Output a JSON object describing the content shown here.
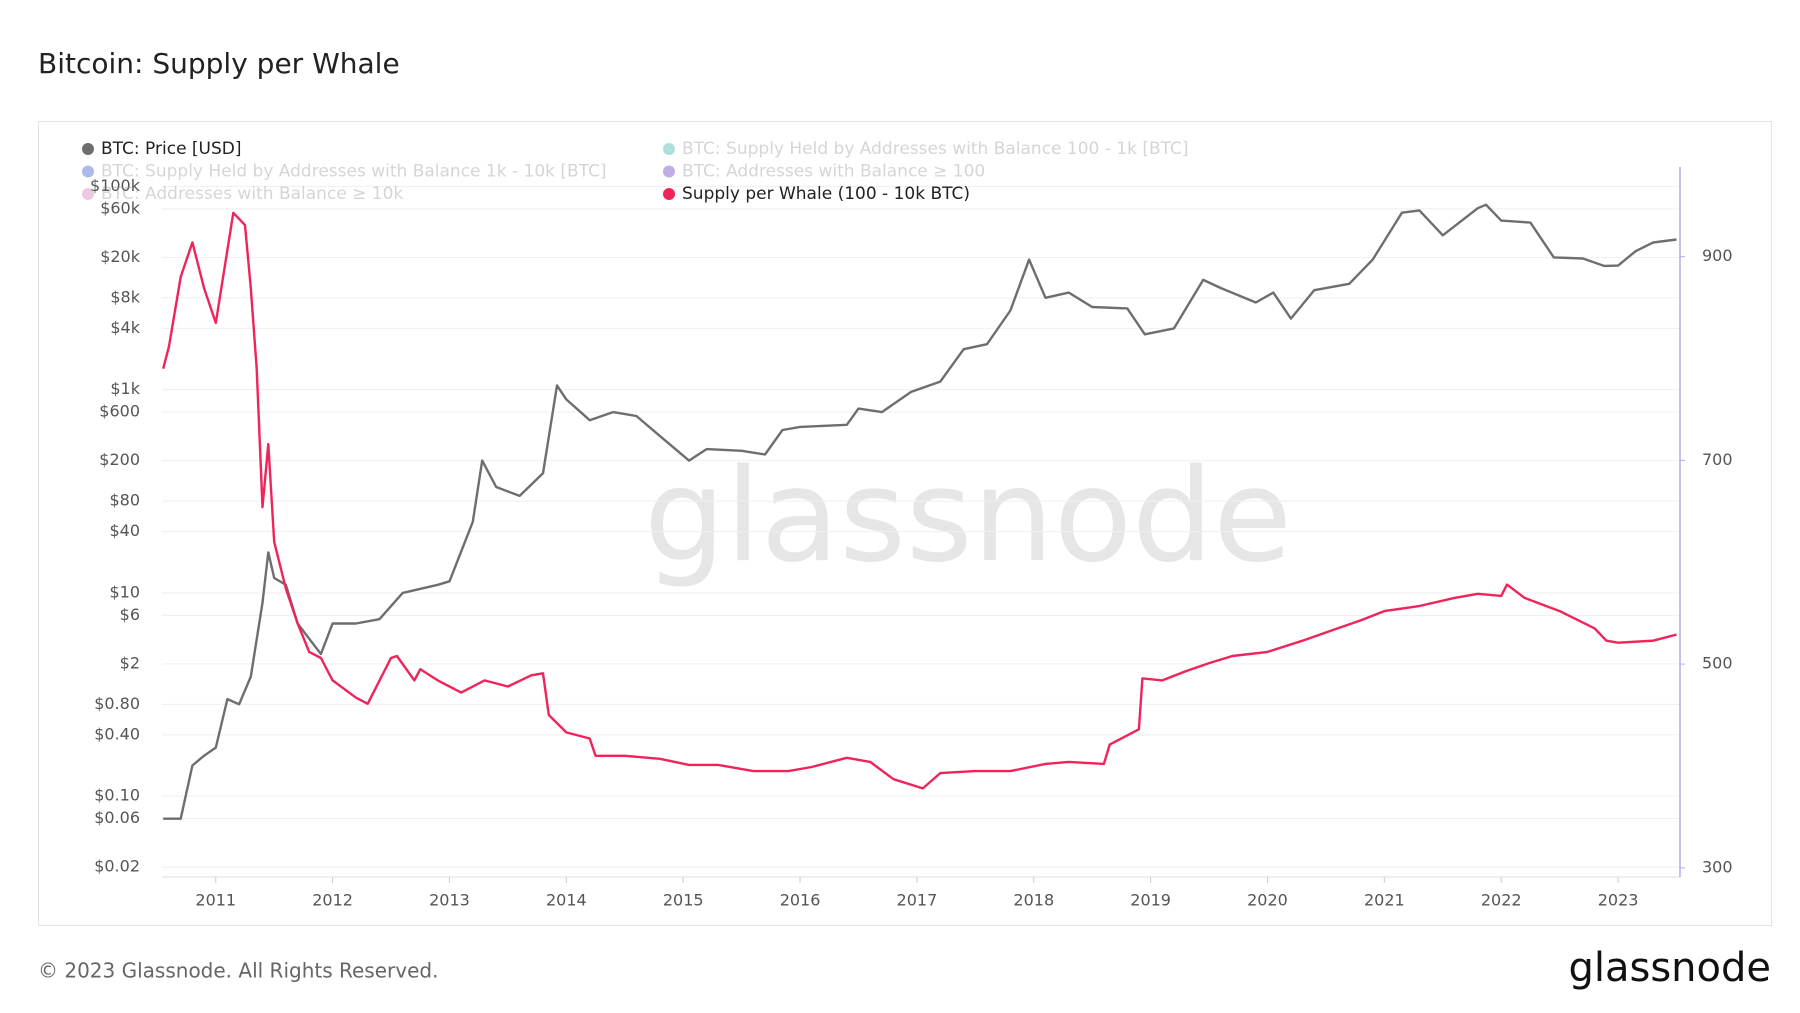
{
  "title": "Bitcoin: Supply per Whale",
  "footer": "© 2023 Glassnode. All Rights Reserved.",
  "logo": "glassnode",
  "watermark": "glassnode",
  "chart_data": {
    "type": "line",
    "log_scale": true,
    "grid": true,
    "xlim": [
      2010.54,
      2023.53
    ],
    "xticks": [
      2011,
      2012,
      2013,
      2014,
      2015,
      2016,
      2017,
      2018,
      2019,
      2020,
      2021,
      2022,
      2023
    ],
    "ylim": [
      0.016,
      155000
    ],
    "yticks": [
      {
        "value": 100000,
        "label": "$100k"
      },
      {
        "value": 60000,
        "label": "$60k"
      },
      {
        "value": 20000,
        "label": "$20k"
      },
      {
        "value": 8000,
        "label": "$8k"
      },
      {
        "value": 4000,
        "label": "$4k"
      },
      {
        "value": 1000,
        "label": "$1k"
      },
      {
        "value": 600,
        "label": "$600"
      },
      {
        "value": 200,
        "label": "$200"
      },
      {
        "value": 80,
        "label": "$80"
      },
      {
        "value": 40,
        "label": "$40"
      },
      {
        "value": 10,
        "label": "$10"
      },
      {
        "value": 6,
        "label": "$6"
      },
      {
        "value": 2,
        "label": "$2"
      },
      {
        "value": 0.8,
        "label": "$0.80"
      },
      {
        "value": 0.4,
        "label": "$0.40"
      },
      {
        "value": 0.1,
        "label": "$0.10"
      },
      {
        "value": 0.06,
        "label": "$0.06"
      },
      {
        "value": 0.02,
        "label": "$0.02"
      }
    ],
    "y2lim": [
      291,
      988
    ],
    "y2ticks": [
      300,
      500,
      700,
      900
    ],
    "series": [
      {
        "name": "BTC: Price [USD]",
        "color": "#6e6e6e",
        "axis": "y",
        "visible": true,
        "x": [
          2010.55,
          2010.7,
          2010.8,
          2010.9,
          2011.0,
          2011.1,
          2011.2,
          2011.3,
          2011.4,
          2011.45,
          2011.5,
          2011.6,
          2011.7,
          2011.9,
          2012.0,
          2012.2,
          2012.4,
          2012.6,
          2012.9,
          2013.0,
          2013.2,
          2013.28,
          2013.4,
          2013.6,
          2013.8,
          2013.92,
          2014.0,
          2014.2,
          2014.4,
          2014.6,
          2014.8,
          2015.05,
          2015.2,
          2015.5,
          2015.7,
          2015.85,
          2016.0,
          2016.4,
          2016.5,
          2016.7,
          2016.95,
          2017.2,
          2017.4,
          2017.6,
          2017.8,
          2017.96,
          2018.1,
          2018.3,
          2018.5,
          2018.8,
          2018.95,
          2019.2,
          2019.45,
          2019.6,
          2019.9,
          2020.05,
          2020.2,
          2020.4,
          2020.7,
          2020.9,
          2021.0,
          2021.15,
          2021.3,
          2021.5,
          2021.8,
          2021.87,
          2022.0,
          2022.25,
          2022.45,
          2022.7,
          2022.88,
          2023.0,
          2023.15,
          2023.3,
          2023.5
        ],
        "values": [
          0.06,
          0.06,
          0.2,
          0.25,
          0.3,
          0.9,
          0.8,
          1.5,
          8,
          25,
          14,
          12,
          5,
          2.5,
          5,
          5,
          5.5,
          10,
          12,
          13,
          50,
          200,
          110,
          90,
          150,
          1100,
          800,
          500,
          600,
          550,
          350,
          200,
          260,
          250,
          230,
          400,
          430,
          450,
          650,
          600,
          950,
          1200,
          2500,
          2800,
          6000,
          19000,
          8000,
          9000,
          6500,
          6300,
          3500,
          4000,
          12000,
          10000,
          7200,
          9000,
          5000,
          9500,
          11000,
          19000,
          29000,
          55000,
          58000,
          33000,
          61000,
          66000,
          46000,
          44000,
          20000,
          19500,
          16500,
          16600,
          23000,
          28000,
          30000
        ]
      },
      {
        "name": "BTC: Supply Held by Addresses with Balance 100 - 1k [BTC]",
        "color": "#1aa5a0",
        "axis": "y2",
        "visible": false
      },
      {
        "name": "BTC: Supply Held by Addresses with Balance 1k - 10k [BTC]",
        "color": "#1040c0",
        "axis": "y2",
        "visible": false
      },
      {
        "name": "BTC: Addresses with Balance ≥ 100",
        "color": "#4a1ab8",
        "axis": "y2",
        "visible": false
      },
      {
        "name": "BTC: Addresses with Balance ≥ 10k",
        "color": "#d060b0",
        "axis": "y2",
        "visible": false
      },
      {
        "name": "Supply per Whale (100 - 10k BTC)",
        "color": "#f0245a",
        "axis": "y2",
        "visible": true,
        "x": [
          2010.55,
          2010.6,
          2010.7,
          2010.8,
          2010.9,
          2011.0,
          2011.15,
          2011.25,
          2011.3,
          2011.35,
          2011.4,
          2011.45,
          2011.5,
          2011.6,
          2011.7,
          2011.8,
          2011.9,
          2012.0,
          2012.2,
          2012.3,
          2012.5,
          2012.55,
          2012.7,
          2012.75,
          2012.9,
          2013.1,
          2013.3,
          2013.5,
          2013.7,
          2013.8,
          2013.85,
          2014.0,
          2014.2,
          2014.25,
          2014.5,
          2014.8,
          2015.05,
          2015.3,
          2015.6,
          2015.9,
          2016.1,
          2016.4,
          2016.6,
          2016.8,
          2017.05,
          2017.2,
          2017.5,
          2017.8,
          2018.1,
          2018.3,
          2018.6,
          2018.65,
          2018.9,
          2018.93,
          2019.1,
          2019.3,
          2019.5,
          2019.7,
          2020.0,
          2020.3,
          2020.6,
          2020.8,
          2021.0,
          2021.3,
          2021.6,
          2021.8,
          2022.0,
          2022.05,
          2022.2,
          2022.5,
          2022.8,
          2022.9,
          2023.0,
          2023.3,
          2023.5
        ],
        "values": [
          790,
          812,
          880,
          914,
          869,
          835,
          943,
          931,
          869,
          790,
          654,
          716,
          620,
          574,
          540,
          512,
          506,
          484,
          467,
          461,
          506,
          508,
          484,
          495,
          484,
          472,
          484,
          478,
          489,
          491,
          450,
          433,
          427,
          410,
          410,
          407,
          401,
          401,
          395,
          395,
          399,
          408,
          404,
          387,
          378,
          393,
          395,
          395,
          402,
          404,
          402,
          421,
          436,
          486,
          484,
          493,
          501,
          508,
          512,
          523,
          535,
          543,
          552,
          557,
          565,
          569,
          567,
          578,
          565,
          552,
          535,
          523,
          521,
          523,
          529
        ]
      }
    ]
  }
}
